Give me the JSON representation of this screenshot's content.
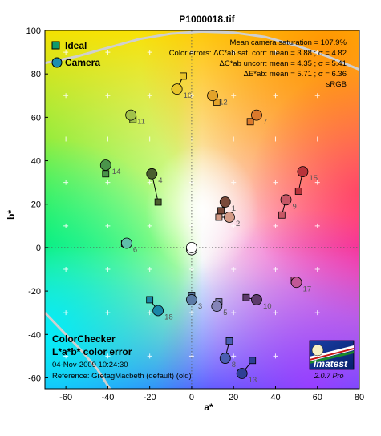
{
  "chart_data": {
    "type": "scatter",
    "title": "P1000018.tif",
    "xlabel": "a*",
    "ylabel": "b*",
    "xlim": [
      -70,
      80
    ],
    "ylim": [
      -65,
      100
    ],
    "x_ticks": [
      -60,
      -40,
      -20,
      0,
      20,
      40,
      60,
      80
    ],
    "y_ticks": [
      -60,
      -40,
      -20,
      0,
      20,
      40,
      60,
      80,
      100
    ],
    "grid": "plus markers every 10 units",
    "legend": [
      {
        "label": "Ideal",
        "marker": "square"
      },
      {
        "label": "Camera",
        "marker": "circle"
      }
    ],
    "info_lines": [
      "Mean camera saturation = 107.9%",
      "Color errors:  ΔC*ab sat. corr:  mean = 3.88 ;  σ = 4.82",
      "ΔC*ab uncorr:  mean = 4.35 ;  σ = 5.41",
      "ΔE*ab:  mean = 5.71 ;  σ = 6.36",
      "sRGB"
    ],
    "bottom_left": {
      "line1": "ColorChecker",
      "line2": "L*a*b* color error",
      "date": "04-Nov-2009 10:24:30",
      "reference": "Reference: GretagMacbeth (default) (old)"
    },
    "logo": {
      "name": "Imatest",
      "version": "2.0.7  Pro"
    },
    "points": [
      {
        "id": 1,
        "ideal": [
          14,
          17
        ],
        "camera": [
          16,
          21
        ],
        "color": "#7a4a3a"
      },
      {
        "id": 2,
        "ideal": [
          13,
          14
        ],
        "camera": [
          18,
          14
        ],
        "color": "#d39a86"
      },
      {
        "id": 3,
        "ideal": [
          0,
          -22
        ],
        "camera": [
          0,
          -24
        ],
        "color": "#5b7ba6"
      },
      {
        "id": 4,
        "ideal": [
          -16,
          21
        ],
        "camera": [
          -19,
          34
        ],
        "color": "#4a5e2e"
      },
      {
        "id": 5,
        "ideal": [
          13,
          -25
        ],
        "camera": [
          12,
          -27
        ],
        "color": "#8584b9"
      },
      {
        "id": 6,
        "ideal": [
          -32,
          2
        ],
        "camera": [
          -31,
          2
        ],
        "color": "#5fbfaa"
      },
      {
        "id": 7,
        "ideal": [
          28,
          58
        ],
        "camera": [
          31,
          61
        ],
        "color": "#db7a2c"
      },
      {
        "id": 8,
        "ideal": [
          18,
          -43
        ],
        "camera": [
          16,
          -51
        ],
        "color": "#4a5db3"
      },
      {
        "id": 9,
        "ideal": [
          43,
          15
        ],
        "camera": [
          45,
          22
        ],
        "color": "#c65665"
      },
      {
        "id": 10,
        "ideal": [
          26,
          -23
        ],
        "camera": [
          31,
          -24
        ],
        "color": "#5d3a6b"
      },
      {
        "id": 11,
        "ideal": [
          -28,
          59
        ],
        "camera": [
          -29,
          61
        ],
        "color": "#a2c24a"
      },
      {
        "id": 12,
        "ideal": [
          12,
          67
        ],
        "camera": [
          10,
          70
        ],
        "color": "#e3a32a"
      },
      {
        "id": 13,
        "ideal": [
          29,
          -52
        ],
        "camera": [
          24,
          -58
        ],
        "color": "#2e3f96"
      },
      {
        "id": 14,
        "ideal": [
          -41,
          34
        ],
        "camera": [
          -41,
          38
        ],
        "color": "#4a944a"
      },
      {
        "id": 15,
        "ideal": [
          51,
          26
        ],
        "camera": [
          53,
          35
        ],
        "color": "#b8333a"
      },
      {
        "id": 16,
        "ideal": [
          -4,
          79
        ],
        "camera": [
          -7,
          73
        ],
        "color": "#e8c52a"
      },
      {
        "id": 17,
        "ideal": [
          49,
          -15
        ],
        "camera": [
          50,
          -16
        ],
        "color": "#c25796"
      },
      {
        "id": 18,
        "ideal": [
          -20,
          -24
        ],
        "camera": [
          -16,
          -29
        ],
        "color": "#1a87a8"
      },
      {
        "id": 19,
        "ideal": [
          0,
          -1
        ],
        "camera": [
          0,
          -1
        ],
        "color": "#f0f0f0"
      },
      {
        "id": 20,
        "ideal": [
          0,
          0
        ],
        "camera": [
          0,
          0
        ],
        "color": "#ffffff"
      }
    ],
    "gamut_curves": [
      {
        "name": "upper",
        "points": [
          [
            -70,
            85
          ],
          [
            -55,
            88
          ],
          [
            -40,
            92
          ],
          [
            -25,
            96
          ],
          [
            -10,
            98.5
          ],
          [
            5,
            99.5
          ],
          [
            20,
            99
          ],
          [
            35,
            97
          ],
          [
            50,
            93
          ],
          [
            65,
            88
          ],
          [
            80,
            82
          ]
        ]
      },
      {
        "name": "lower",
        "points": [
          [
            -70,
            -30
          ],
          [
            -62,
            -38
          ],
          [
            -53,
            -47
          ],
          [
            -45,
            -56
          ],
          [
            -39,
            -65
          ]
        ]
      }
    ]
  }
}
